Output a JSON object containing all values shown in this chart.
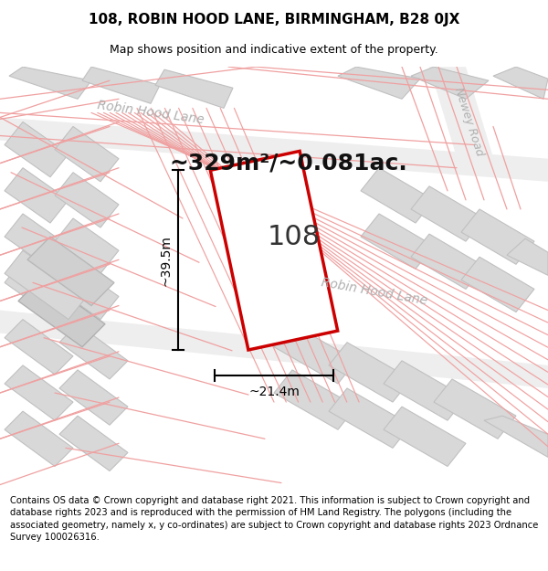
{
  "title_line1": "108, ROBIN HOOD LANE, BIRMINGHAM, B28 0JX",
  "title_line2": "Map shows position and indicative extent of the property.",
  "footer": "Contains OS data © Crown copyright and database right 2021. This information is subject to Crown copyright and database rights 2023 and is reproduced with the permission of HM Land Registry. The polygons (including the associated geometry, namely x, y co-ordinates) are subject to Crown copyright and database rights 2023 Ordnance Survey 100026316.",
  "area_text": "~329m²/~0.081ac.",
  "label_108": "108",
  "dim_width": "~21.4m",
  "dim_height": "~39.5m",
  "road1": "Robin Hood Lane",
  "road2": "Robin Hood Lane",
  "road3": "Newey Road",
  "title_fontsize": 11,
  "subtitle_fontsize": 9,
  "footer_fontsize": 7.2,
  "area_fontsize": 18,
  "dim_fontsize": 10,
  "road_fontsize": 10,
  "label_fontsize": 22,
  "map_bg": "#ffffff",
  "building_fill": "#d8d8d8",
  "building_edge": "#c0c0c0",
  "parcel_line_color": "#f0a0a0",
  "road_label_color": "#b0b0b0",
  "plot_color": "#cc0000",
  "dim_color": "#000000"
}
